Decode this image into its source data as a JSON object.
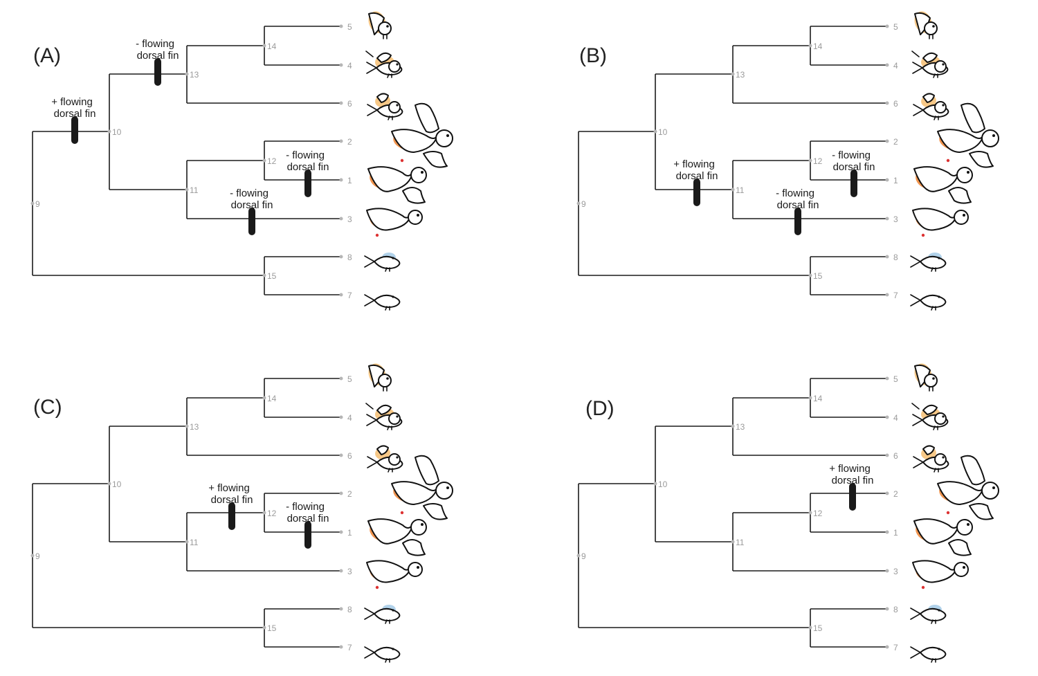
{
  "panels": [
    {
      "id": "A",
      "label": "(A)",
      "events": [
        {
          "text1": "+ flowing",
          "text2": "dorsal fin",
          "node": "10"
        },
        {
          "text1": "- flowing",
          "text2": "dorsal fin",
          "node": "13"
        },
        {
          "text1": "- flowing",
          "text2": "dorsal fin",
          "node": "1"
        },
        {
          "text1": "- flowing",
          "text2": "dorsal fin",
          "node": "3"
        }
      ]
    },
    {
      "id": "B",
      "label": "(B)",
      "events": [
        {
          "text1": "+ flowing",
          "text2": "dorsal fin",
          "node": "11"
        },
        {
          "text1": "- flowing",
          "text2": "dorsal fin",
          "node": "1"
        },
        {
          "text1": "- flowing",
          "text2": "dorsal fin",
          "node": "3"
        }
      ]
    },
    {
      "id": "C",
      "label": "(C)",
      "events": [
        {
          "text1": "+ flowing",
          "text2": "dorsal fin",
          "node": "12"
        },
        {
          "text1": "- flowing",
          "text2": "dorsal fin",
          "node": "1"
        }
      ]
    },
    {
      "id": "D",
      "label": "(D)",
      "events": [
        {
          "text1": "+ flowing",
          "text2": "dorsal fin",
          "node": "2"
        }
      ]
    }
  ],
  "tree": {
    "internal_nodes": [
      "9",
      "10",
      "11",
      "12",
      "13",
      "14",
      "15"
    ],
    "tips": [
      "5",
      "4",
      "6",
      "2",
      "1",
      "3",
      "8",
      "7"
    ]
  },
  "icons": {
    "fish_gold": "goldfish-icon",
    "fish_blue": "blue-fish-icon",
    "fish_plain": "plain-fish-icon",
    "colors": {
      "pale_orange": "#f6c27a",
      "orange": "#ef8a3c",
      "pink": "#f2a0a0",
      "light_blue": "#a9cde8"
    }
  }
}
